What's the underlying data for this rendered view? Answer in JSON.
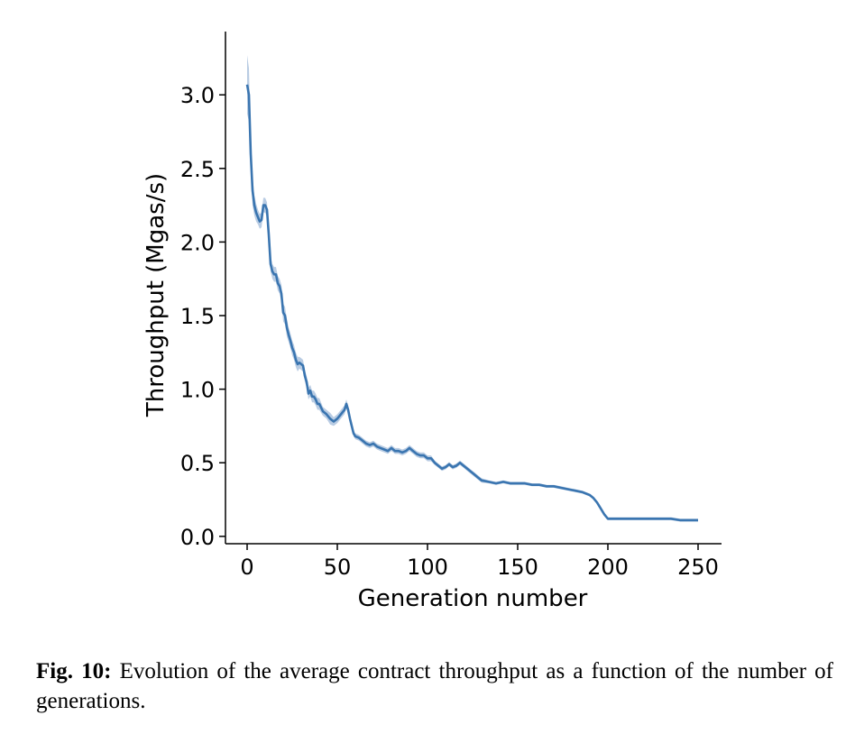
{
  "chart_data": {
    "type": "line",
    "title": "",
    "xlabel": "Generation number",
    "ylabel": "Throughput (Mgas/s)",
    "xlim": [
      -12,
      263
    ],
    "ylim": [
      -0.05,
      3.43
    ],
    "x_ticks": [
      0,
      50,
      100,
      150,
      200,
      250
    ],
    "x_tick_labels": [
      "0",
      "50",
      "100",
      "150",
      "200",
      "250"
    ],
    "y_ticks": [
      0.0,
      0.5,
      1.0,
      1.5,
      2.0,
      2.5,
      3.0
    ],
    "y_tick_labels": [
      "0.0",
      "0.5",
      "1.0",
      "1.5",
      "2.0",
      "2.5",
      "3.0"
    ],
    "grid": false,
    "legend": "none",
    "line_color": "#3a75b0",
    "band_color": "#b9cce3",
    "series": [
      {
        "x": [
          0,
          1,
          2,
          3,
          4,
          5,
          6,
          7,
          8,
          9,
          10,
          11,
          12,
          13,
          14,
          15,
          16,
          17,
          18,
          19,
          20,
          21,
          22,
          23,
          24,
          25,
          26,
          27,
          28,
          29,
          30,
          31,
          32,
          33,
          34,
          35,
          36,
          37,
          38,
          39,
          40,
          42,
          44,
          46,
          48,
          50,
          52,
          54,
          55,
          56,
          57,
          58,
          59,
          60,
          62,
          64,
          66,
          68,
          70,
          72,
          74,
          76,
          78,
          80,
          82,
          84,
          86,
          88,
          90,
          92,
          94,
          96,
          98,
          100,
          102,
          104,
          106,
          108,
          110,
          112,
          114,
          116,
          118,
          120,
          122,
          124,
          126,
          128,
          130,
          134,
          138,
          142,
          146,
          150,
          154,
          158,
          162,
          166,
          170,
          174,
          178,
          182,
          186,
          190,
          192,
          194,
          196,
          198,
          200,
          205,
          210,
          215,
          220,
          225,
          230,
          235,
          240,
          245,
          250
        ],
        "values": [
          3.07,
          3.0,
          2.6,
          2.35,
          2.25,
          2.2,
          2.17,
          2.14,
          2.15,
          2.25,
          2.25,
          2.22,
          2.05,
          1.85,
          1.8,
          1.78,
          1.78,
          1.72,
          1.7,
          1.65,
          1.52,
          1.5,
          1.42,
          1.37,
          1.33,
          1.28,
          1.25,
          1.2,
          1.17,
          1.18,
          1.17,
          1.16,
          1.09,
          1.05,
          0.97,
          0.99,
          0.95,
          0.95,
          0.93,
          0.9,
          0.9,
          0.85,
          0.83,
          0.8,
          0.78,
          0.8,
          0.83,
          0.86,
          0.9,
          0.86,
          0.8,
          0.75,
          0.7,
          0.68,
          0.67,
          0.65,
          0.63,
          0.62,
          0.63,
          0.61,
          0.6,
          0.59,
          0.58,
          0.6,
          0.58,
          0.58,
          0.57,
          0.58,
          0.6,
          0.58,
          0.56,
          0.55,
          0.55,
          0.53,
          0.53,
          0.5,
          0.48,
          0.46,
          0.47,
          0.49,
          0.47,
          0.48,
          0.5,
          0.48,
          0.46,
          0.44,
          0.42,
          0.4,
          0.38,
          0.37,
          0.36,
          0.37,
          0.36,
          0.36,
          0.36,
          0.35,
          0.35,
          0.34,
          0.34,
          0.33,
          0.32,
          0.31,
          0.3,
          0.28,
          0.26,
          0.23,
          0.19,
          0.15,
          0.12,
          0.12,
          0.12,
          0.12,
          0.12,
          0.12,
          0.12,
          0.12,
          0.11,
          0.11,
          0.11
        ],
        "spread": [
          0.2,
          0.18,
          0.12,
          0.1,
          0.07,
          0.06,
          0.05,
          0.05,
          0.05,
          0.05,
          0.05,
          0.05,
          0.05,
          0.05,
          0.05,
          0.05,
          0.05,
          0.05,
          0.05,
          0.06,
          0.06,
          0.06,
          0.06,
          0.05,
          0.05,
          0.05,
          0.05,
          0.05,
          0.05,
          0.04,
          0.04,
          0.04,
          0.04,
          0.04,
          0.04,
          0.04,
          0.04,
          0.04,
          0.04,
          0.04,
          0.04,
          0.03,
          0.03,
          0.04,
          0.03,
          0.03,
          0.03,
          0.03,
          0.03,
          0.03,
          0.03,
          0.03,
          0.02,
          0.02,
          0.02,
          0.02,
          0.02,
          0.02,
          0.02,
          0.02,
          0.02,
          0.02,
          0.02,
          0.02,
          0.02,
          0.02,
          0.02,
          0.02,
          0.02,
          0.02,
          0.02,
          0.02,
          0.02,
          0.02,
          0.02,
          0.015,
          0.015,
          0.015,
          0.015,
          0.015,
          0.015,
          0.015,
          0.015,
          0.015,
          0.015,
          0.015,
          0.015,
          0.015,
          0.015,
          0.01,
          0.01,
          0.01,
          0.01,
          0.01,
          0.01,
          0.01,
          0.01,
          0.01,
          0.01,
          0.01,
          0.01,
          0.01,
          0.01,
          0.01,
          0.01,
          0.01,
          0.01,
          0.01,
          0.01,
          0.01,
          0.01,
          0.01,
          0.01,
          0.01,
          0.01,
          0.01,
          0.01,
          0.01,
          0.01
        ]
      }
    ]
  },
  "caption": {
    "label": "Fig. 10:",
    "text": "Evolution of the average contract throughput as a function of the number of generations."
  }
}
